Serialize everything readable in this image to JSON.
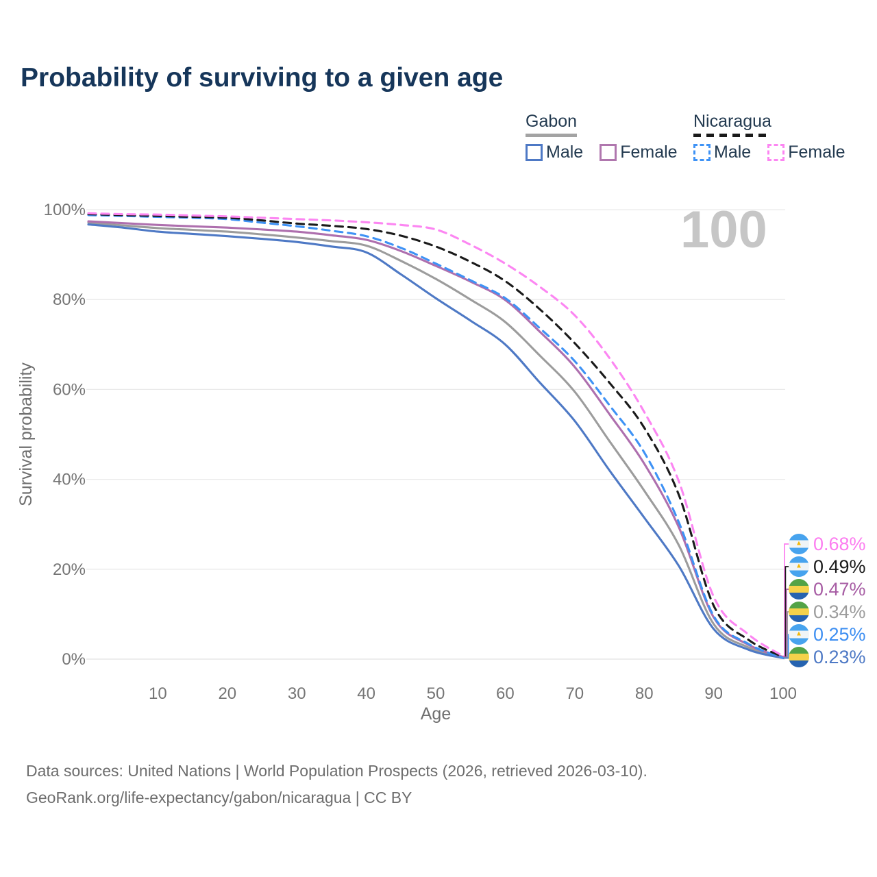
{
  "title": "Probability of surviving to a given age",
  "watermark": "100",
  "legend": {
    "gabon": {
      "label": "Gabon",
      "male": "Male",
      "female": "Female"
    },
    "nicaragua": {
      "label": "Nicaragua",
      "male": "Male",
      "female": "Female"
    }
  },
  "axes": {
    "y_label": "Survival probability",
    "x_label": "Age",
    "y_ticks": [
      "100%",
      "80%",
      "60%",
      "40%",
      "20%",
      "0%"
    ],
    "x_ticks": [
      "10",
      "20",
      "30",
      "40",
      "50",
      "60",
      "70",
      "80",
      "90",
      "100"
    ]
  },
  "end_labels": [
    {
      "country": "nicaragua",
      "series_key": "nicaragua_female",
      "value": "0.68%",
      "color": "#fc7df0"
    },
    {
      "country": "nicaragua",
      "series_key": "nicaragua_total",
      "value": "0.49%",
      "color": "#1a1a1a"
    },
    {
      "country": "gabon",
      "series_key": "gabon_female",
      "value": "0.47%",
      "color": "#a75da4"
    },
    {
      "country": "gabon",
      "series_key": "gabon_total",
      "value": "0.34%",
      "color": "#9c9c9c"
    },
    {
      "country": "nicaragua",
      "series_key": "nicaragua_male",
      "value": "0.25%",
      "color": "#3e8ff2"
    },
    {
      "country": "gabon",
      "series_key": "gabon_male",
      "value": "0.23%",
      "color": "#4e79c5"
    }
  ],
  "footer": {
    "line1": "Data sources: United Nations | World Population Prospects (2026, retrieved 2026-03-10).",
    "line2": "GeoRank.org/life-expectancy/gabon/nicaragua | CC BY"
  },
  "chart_data": {
    "type": "line",
    "title": "Probability of surviving to a given age",
    "xlabel": "Age",
    "ylabel": "Survival probability",
    "xlim": [
      0,
      100
    ],
    "ylim": [
      0,
      100
    ],
    "grid": "horizontal",
    "x": [
      0,
      5,
      10,
      15,
      20,
      25,
      30,
      35,
      40,
      45,
      50,
      55,
      60,
      65,
      70,
      75,
      80,
      85,
      90,
      95,
      100
    ],
    "series": [
      {
        "key": "gabon_total",
        "name": "Gabon (both sexes)",
        "color": "#9c9c9c",
        "dash": null,
        "values": [
          97.1,
          96.5,
          95.9,
          95.5,
          95.1,
          94.5,
          93.8,
          93.0,
          92.0,
          88.6,
          84.6,
          80.0,
          75.0,
          67.5,
          59.5,
          48.5,
          37.5,
          25.3,
          7.8,
          2.6,
          0.34
        ]
      },
      {
        "key": "gabon_female",
        "name": "Gabon Female",
        "color": "#ae6fae",
        "dash": null,
        "values": [
          97.4,
          97.0,
          96.6,
          96.3,
          96.0,
          95.6,
          95.1,
          94.3,
          93.3,
          90.8,
          87.5,
          84.0,
          79.9,
          72.8,
          65.0,
          54.5,
          43.5,
          29.3,
          9.3,
          3.2,
          0.47
        ]
      },
      {
        "key": "gabon_male",
        "name": "Gabon Male",
        "color": "#4e79c5",
        "dash": null,
        "values": [
          96.7,
          96.0,
          95.1,
          94.6,
          94.1,
          93.5,
          92.8,
          91.8,
          90.5,
          85.6,
          80.3,
          75.3,
          70.0,
          61.5,
          53.0,
          42.0,
          31.5,
          20.7,
          6.7,
          2.1,
          0.23
        ]
      },
      {
        "key": "nicaragua_male",
        "name": "Nicaragua Male",
        "color": "#3e92f5",
        "dash": "11 8",
        "values": [
          98.8,
          98.6,
          98.4,
          98.2,
          97.9,
          97.1,
          96.3,
          95.3,
          94.1,
          91.5,
          88.0,
          84.3,
          80.3,
          73.6,
          66.3,
          56.5,
          46.0,
          30.4,
          9.6,
          3.4,
          0.25
        ]
      },
      {
        "key": "nicaragua_total",
        "name": "Nicaragua (both sexes)",
        "color": "#1a1a1a",
        "dash": "11 8",
        "values": [
          99.0,
          98.8,
          98.6,
          98.4,
          98.2,
          97.6,
          96.9,
          96.4,
          95.7,
          94.2,
          91.8,
          88.4,
          84.1,
          77.8,
          70.3,
          61.5,
          51.5,
          36.5,
          11.9,
          4.3,
          0.49
        ]
      },
      {
        "key": "nicaragua_female",
        "name": "Nicaragua Female",
        "color": "#fc86f2",
        "dash": "11 8",
        "values": [
          99.2,
          99.0,
          98.9,
          98.7,
          98.5,
          98.2,
          97.9,
          97.6,
          97.2,
          96.6,
          95.6,
          92.2,
          88.0,
          82.8,
          76.5,
          67.0,
          55.0,
          39.5,
          13.9,
          5.5,
          0.68
        ]
      }
    ]
  }
}
